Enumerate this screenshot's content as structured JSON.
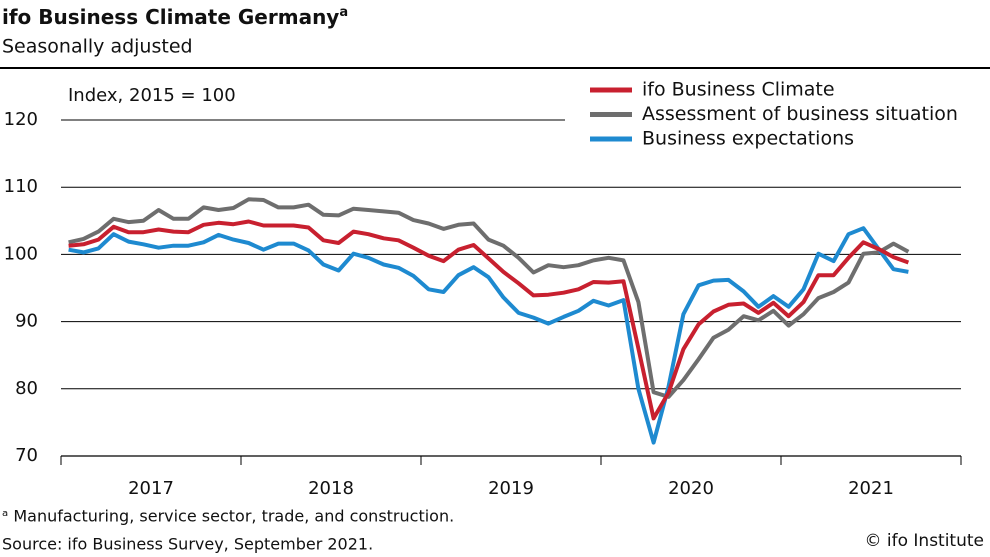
{
  "chart_data": {
    "type": "line",
    "title": "ifo Business Climate Germany",
    "title_note": "a",
    "subtitle": "Seasonally adjusted",
    "annotation": "Index, 2015 = 100",
    "footnote": "ᵃ Manufacturing, service sector, trade, and construction.",
    "source": "Source: ifo Business Survey, September 2021.",
    "credit": "© ifo Institute",
    "x": [
      2017.042,
      2017.125,
      2017.208,
      2017.292,
      2017.375,
      2017.458,
      2017.542,
      2017.625,
      2017.708,
      2017.792,
      2017.875,
      2017.958,
      2018.042,
      2018.125,
      2018.208,
      2018.292,
      2018.375,
      2018.458,
      2018.542,
      2018.625,
      2018.708,
      2018.792,
      2018.875,
      2018.958,
      2019.042,
      2019.125,
      2019.208,
      2019.292,
      2019.375,
      2019.458,
      2019.542,
      2019.625,
      2019.708,
      2019.792,
      2019.875,
      2019.958,
      2020.042,
      2020.125,
      2020.208,
      2020.292,
      2020.375,
      2020.458,
      2020.542,
      2020.625,
      2020.708,
      2020.792,
      2020.875,
      2020.958,
      2021.042,
      2021.125,
      2021.208,
      2021.292,
      2021.375,
      2021.458,
      2021.542,
      2021.625,
      2021.708
    ],
    "series": [
      {
        "name": "ifo Business Climate",
        "color": "#c8202f",
        "values": [
          101.3,
          101.5,
          102.2,
          104.1,
          103.3,
          103.3,
          103.7,
          103.4,
          103.3,
          104.4,
          104.7,
          104.5,
          104.9,
          104.3,
          104.3,
          104.3,
          104.0,
          102.1,
          101.7,
          103.4,
          103.0,
          102.4,
          102.1,
          101.0,
          99.8,
          99.0,
          100.7,
          101.4,
          99.4,
          97.4,
          95.7,
          93.9,
          94.0,
          94.3,
          94.8,
          95.9,
          95.8,
          96.0,
          86.0,
          75.6,
          79.4,
          85.9,
          89.6,
          91.5,
          92.5,
          92.7,
          91.3,
          92.8,
          90.8,
          92.9,
          96.9,
          96.9,
          99.5,
          101.8,
          100.8,
          99.6,
          98.8
        ]
      },
      {
        "name": "Assessment of business situation",
        "color": "#6e6e6e",
        "values": [
          101.8,
          102.3,
          103.4,
          105.3,
          104.8,
          105.0,
          106.6,
          105.3,
          105.3,
          107.0,
          106.6,
          106.9,
          108.2,
          108.1,
          107.0,
          107.0,
          107.4,
          105.9,
          105.8,
          106.8,
          106.6,
          106.4,
          106.2,
          105.1,
          104.6,
          103.8,
          104.4,
          104.6,
          102.2,
          101.3,
          99.5,
          97.3,
          98.4,
          98.1,
          98.4,
          99.1,
          99.5,
          99.1,
          92.9,
          79.5,
          78.8,
          81.3,
          84.4,
          87.6,
          88.8,
          90.8,
          90.2,
          91.6,
          89.4,
          91.1,
          93.5,
          94.4,
          95.8,
          100.1,
          100.3,
          101.6,
          100.4
        ]
      },
      {
        "name": "Business expectations",
        "color": "#1e8ad0",
        "values": [
          100.7,
          100.3,
          100.9,
          103.0,
          101.9,
          101.5,
          101.0,
          101.3,
          101.3,
          101.8,
          102.9,
          102.2,
          101.7,
          100.7,
          101.6,
          101.6,
          100.6,
          98.5,
          97.6,
          100.1,
          99.5,
          98.5,
          98.0,
          96.8,
          94.8,
          94.4,
          96.9,
          98.1,
          96.6,
          93.6,
          91.3,
          90.6,
          89.7,
          90.7,
          91.6,
          93.1,
          92.4,
          93.2,
          80.0,
          72.0,
          80.3,
          91.1,
          95.4,
          96.1,
          96.2,
          94.5,
          92.2,
          93.8,
          92.2,
          94.8,
          100.1,
          99.0,
          103.0,
          103.9,
          100.8,
          97.8,
          97.4
        ]
      }
    ],
    "xlim": [
      2017,
      2022
    ],
    "xticks": [
      2017,
      2018,
      2019,
      2020,
      2021,
      2022
    ],
    "year_labels": [
      2017,
      2018,
      2019,
      2020,
      2021
    ],
    "ylim": [
      70,
      120
    ],
    "yticks": [
      70,
      80,
      90,
      100,
      110,
      120
    ],
    "grid": true,
    "legend": "top-right"
  }
}
